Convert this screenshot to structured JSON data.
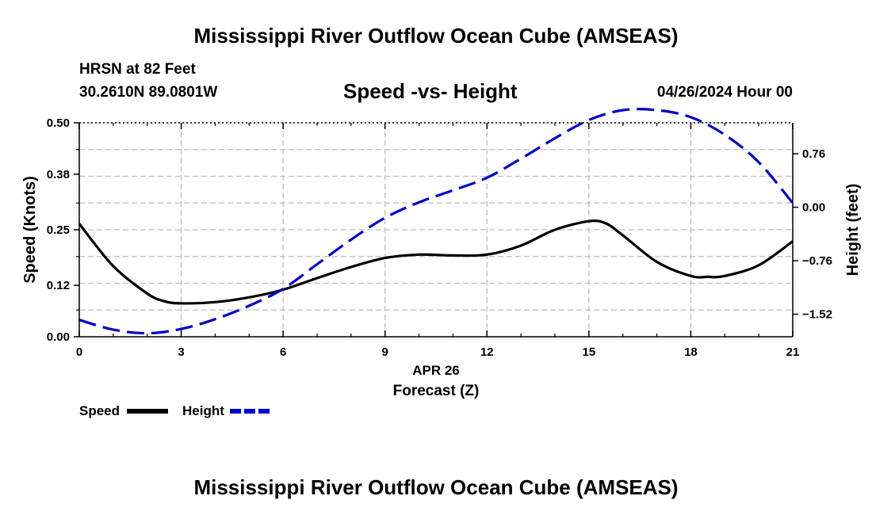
{
  "header": {
    "title": "Mississippi River Outflow Ocean Cube (AMSEAS)",
    "station": "HRSN at 82 Feet",
    "coords": "30.2610N  89.0801W",
    "subtitle": "Speed -vs- Height",
    "datetime": "04/26/2024 Hour 00"
  },
  "footer": {
    "title": "Mississippi River Outflow Ocean Cube (AMSEAS)"
  },
  "chart_data": {
    "type": "line",
    "x_date_label": "APR 26",
    "xlabel": "Forecast (Z)",
    "ylabel_left": "Speed (Knots)",
    "ylabel_right": "Height (feet)",
    "xlim": [
      0,
      21
    ],
    "ylim_left": [
      0,
      0.5
    ],
    "ylim_right": [
      -1.84,
      1.2
    ],
    "x_ticks": [
      0,
      3,
      6,
      9,
      12,
      15,
      18,
      21
    ],
    "y_left_ticks": [
      0.0,
      0.12,
      0.25,
      0.38,
      0.5
    ],
    "y_left_tick_labels": [
      "0.00",
      "0.12",
      "0.25",
      "0.38",
      "0.50"
    ],
    "y_right_ticks": [
      -1.52,
      -0.76,
      0.0,
      0.76
    ],
    "y_right_tick_labels": [
      "−1.52",
      "−0.76",
      "0.00",
      "0.76"
    ],
    "grid": true,
    "legend_position": "bottom-left",
    "series": [
      {
        "name": "Speed",
        "axis": "left",
        "color": "#000000",
        "dash": "solid",
        "x": [
          0,
          1,
          2,
          2.5,
          3,
          4,
          5,
          6,
          7,
          8,
          9,
          10,
          11,
          12,
          13,
          14,
          15,
          15.5,
          16,
          17,
          18,
          18.5,
          19,
          20,
          21
        ],
        "values": [
          0.264,
          0.165,
          0.101,
          0.083,
          0.078,
          0.081,
          0.092,
          0.11,
          0.137,
          0.163,
          0.184,
          0.192,
          0.19,
          0.192,
          0.213,
          0.25,
          0.27,
          0.265,
          0.237,
          0.175,
          0.142,
          0.14,
          0.142,
          0.167,
          0.223
        ]
      },
      {
        "name": "Height",
        "axis": "right",
        "color": "#0000cc",
        "dash": "dashed",
        "x": [
          0,
          1,
          2,
          3,
          4,
          5,
          6,
          7,
          8,
          9,
          10,
          11,
          12,
          13,
          14,
          15,
          16,
          17,
          18,
          19,
          20,
          21
        ],
        "values": [
          -1.6,
          -1.74,
          -1.79,
          -1.73,
          -1.59,
          -1.4,
          -1.16,
          -0.81,
          -0.46,
          -0.15,
          0.07,
          0.24,
          0.42,
          0.69,
          0.98,
          1.24,
          1.38,
          1.38,
          1.28,
          1.03,
          0.64,
          0.06
        ]
      }
    ]
  }
}
